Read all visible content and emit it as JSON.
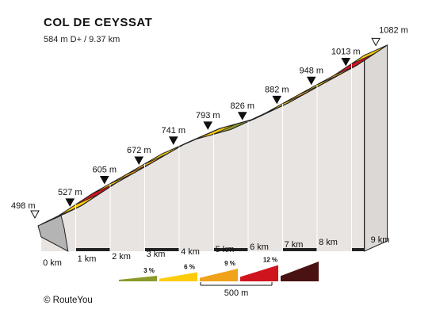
{
  "header": {
    "title": "COL DE CEYSSAT",
    "subtitle": "584 m D+ / 9.37 km"
  },
  "footer": {
    "credit": "©  RouteYou"
  },
  "chart_data": {
    "type": "area",
    "title": "COL DE CEYSSAT",
    "subtitle": "584 m D+ / 9.37 km",
    "xlabel": "",
    "ylabel": "",
    "x_unit": "km",
    "total_distance_km": 9.37,
    "ticks": [
      {
        "km": 0,
        "label": "0 km"
      },
      {
        "km": 1,
        "label": "1 km"
      },
      {
        "km": 2,
        "label": "2 km"
      },
      {
        "km": 3,
        "label": "3 km"
      },
      {
        "km": 4,
        "label": "4 km"
      },
      {
        "km": 5,
        "label": "5 km"
      },
      {
        "km": 6,
        "label": "6 km"
      },
      {
        "km": 7,
        "label": "7 km"
      },
      {
        "km": 8,
        "label": "8 km"
      },
      {
        "km": 9,
        "label": "9 km"
      }
    ],
    "elevations": [
      {
        "km": 0,
        "elevation_m": 498,
        "label": "498 m",
        "kind": "start"
      },
      {
        "km": 0.5,
        "elevation_m": 527,
        "label": "527 m",
        "kind": "marker"
      },
      {
        "km": 1.5,
        "elevation_m": 605,
        "label": "605 m",
        "kind": "marker"
      },
      {
        "km": 2.5,
        "elevation_m": 672,
        "label": "672 m",
        "kind": "marker"
      },
      {
        "km": 3.5,
        "elevation_m": 741,
        "label": "741 m",
        "kind": "marker"
      },
      {
        "km": 4.5,
        "elevation_m": 793,
        "label": "793 m",
        "kind": "marker"
      },
      {
        "km": 5.5,
        "elevation_m": 826,
        "label": "826 m",
        "kind": "marker"
      },
      {
        "km": 6.5,
        "elevation_m": 882,
        "label": "882 m",
        "kind": "marker"
      },
      {
        "km": 7.5,
        "elevation_m": 948,
        "label": "948 m",
        "kind": "marker"
      },
      {
        "km": 8.5,
        "elevation_m": 1013,
        "label": "1013 m",
        "kind": "marker"
      },
      {
        "km": 9.37,
        "elevation_m": 1082,
        "label": "1082 m",
        "kind": "end"
      }
    ],
    "segments": [
      {
        "from_km": 0,
        "to_km": 0.5,
        "gradient_class": "6"
      },
      {
        "from_km": 0.5,
        "to_km": 1,
        "gradient_class": "6"
      },
      {
        "from_km": 1,
        "to_km": 1.5,
        "gradient_class": "12"
      },
      {
        "from_km": 1.5,
        "to_km": 2,
        "gradient_class": "6"
      },
      {
        "from_km": 2,
        "to_km": 2.5,
        "gradient_class": "9"
      },
      {
        "from_km": 2.5,
        "to_km": 3,
        "gradient_class": "9"
      },
      {
        "from_km": 3,
        "to_km": 3.5,
        "gradient_class": "6"
      },
      {
        "from_km": 3.5,
        "to_km": 4,
        "gradient_class": "6"
      },
      {
        "from_km": 4,
        "to_km": 4.5,
        "gradient_class": "6"
      },
      {
        "from_km": 4.5,
        "to_km": 5,
        "gradient_class": "6"
      },
      {
        "from_km": 5,
        "to_km": 5.5,
        "gradient_class": "3"
      },
      {
        "from_km": 5.5,
        "to_km": 6,
        "gradient_class": "6"
      },
      {
        "from_km": 6,
        "to_km": 6.5,
        "gradient_class": "9"
      },
      {
        "from_km": 6.5,
        "to_km": 7,
        "gradient_class": "6"
      },
      {
        "from_km": 7,
        "to_km": 7.5,
        "gradient_class": "9"
      },
      {
        "from_km": 7.5,
        "to_km": 8,
        "gradient_class": "6"
      },
      {
        "from_km": 8,
        "to_km": 8.5,
        "gradient_class": "9"
      },
      {
        "from_km": 8.5,
        "to_km": 9,
        "gradient_class": "12"
      },
      {
        "from_km": 9,
        "to_km": 9.37,
        "gradient_class": "6"
      }
    ],
    "legend": [
      {
        "key": "3",
        "label": "3 %",
        "color": "#8c9a2a"
      },
      {
        "key": "6",
        "label": "6 %",
        "color": "#fccc0c"
      },
      {
        "key": "9",
        "label": "9 %",
        "color": "#f0a21a"
      },
      {
        "key": "12",
        "label": "12 %",
        "color": "#d0141e"
      },
      {
        "key": "15",
        "label": "",
        "color": "#4a1212"
      }
    ],
    "scale_bar": {
      "label": "500 m"
    },
    "colors": {
      "side_wall": "#e8e4e1",
      "base": "#b4b4b4",
      "outline": "#222222",
      "ground": "#222222"
    }
  }
}
